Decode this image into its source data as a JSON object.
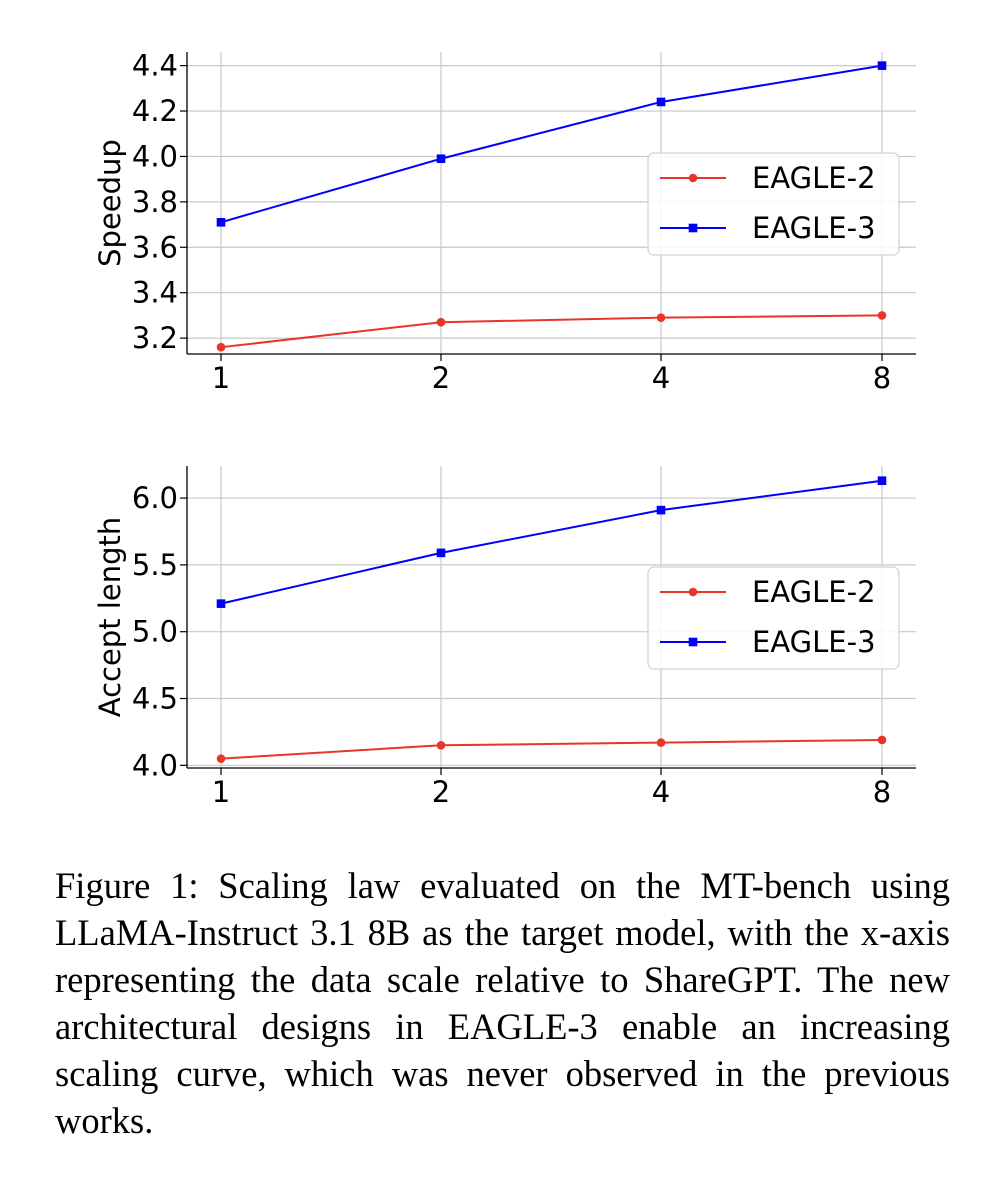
{
  "chart_data": [
    {
      "type": "line",
      "ylabel": "Speedup",
      "xlabel": "",
      "categories": [
        "1",
        "2",
        "4",
        "8"
      ],
      "ylim": [
        3.13,
        4.46
      ],
      "yticks": [
        "3.2",
        "3.4",
        "3.6",
        "3.8",
        "4.0",
        "4.2",
        "4.4"
      ],
      "grid": true,
      "legend": "right",
      "series": [
        {
          "name": "EAGLE-2",
          "values": [
            3.16,
            3.27,
            3.29,
            3.3
          ],
          "color": "#e8352b",
          "marker": "circle"
        },
        {
          "name": "EAGLE-3",
          "values": [
            3.71,
            3.99,
            4.24,
            4.4
          ],
          "color": "#0000ff",
          "marker": "square"
        }
      ]
    },
    {
      "type": "line",
      "ylabel": "Accept length",
      "xlabel": "",
      "categories": [
        "1",
        "2",
        "4",
        "8"
      ],
      "ylim": [
        3.98,
        6.24
      ],
      "yticks": [
        "4.0",
        "4.5",
        "5.0",
        "5.5",
        "6.0"
      ],
      "grid": true,
      "legend": "right",
      "series": [
        {
          "name": "EAGLE-2",
          "values": [
            4.05,
            4.15,
            4.17,
            4.19
          ],
          "color": "#e8352b",
          "marker": "circle"
        },
        {
          "name": "EAGLE-3",
          "values": [
            5.21,
            5.59,
            5.91,
            6.13
          ],
          "color": "#0000ff",
          "marker": "square"
        }
      ]
    }
  ],
  "caption": "Figure 1: Scaling law evaluated on the MT-bench using LLaMA-Instruct 3.1 8B as the target model, with the x-axis representing the data scale relative to ShareGPT. The new architectural designs in EAGLE-3 enable an increasing scaling curve, which was never observed in the previous works."
}
